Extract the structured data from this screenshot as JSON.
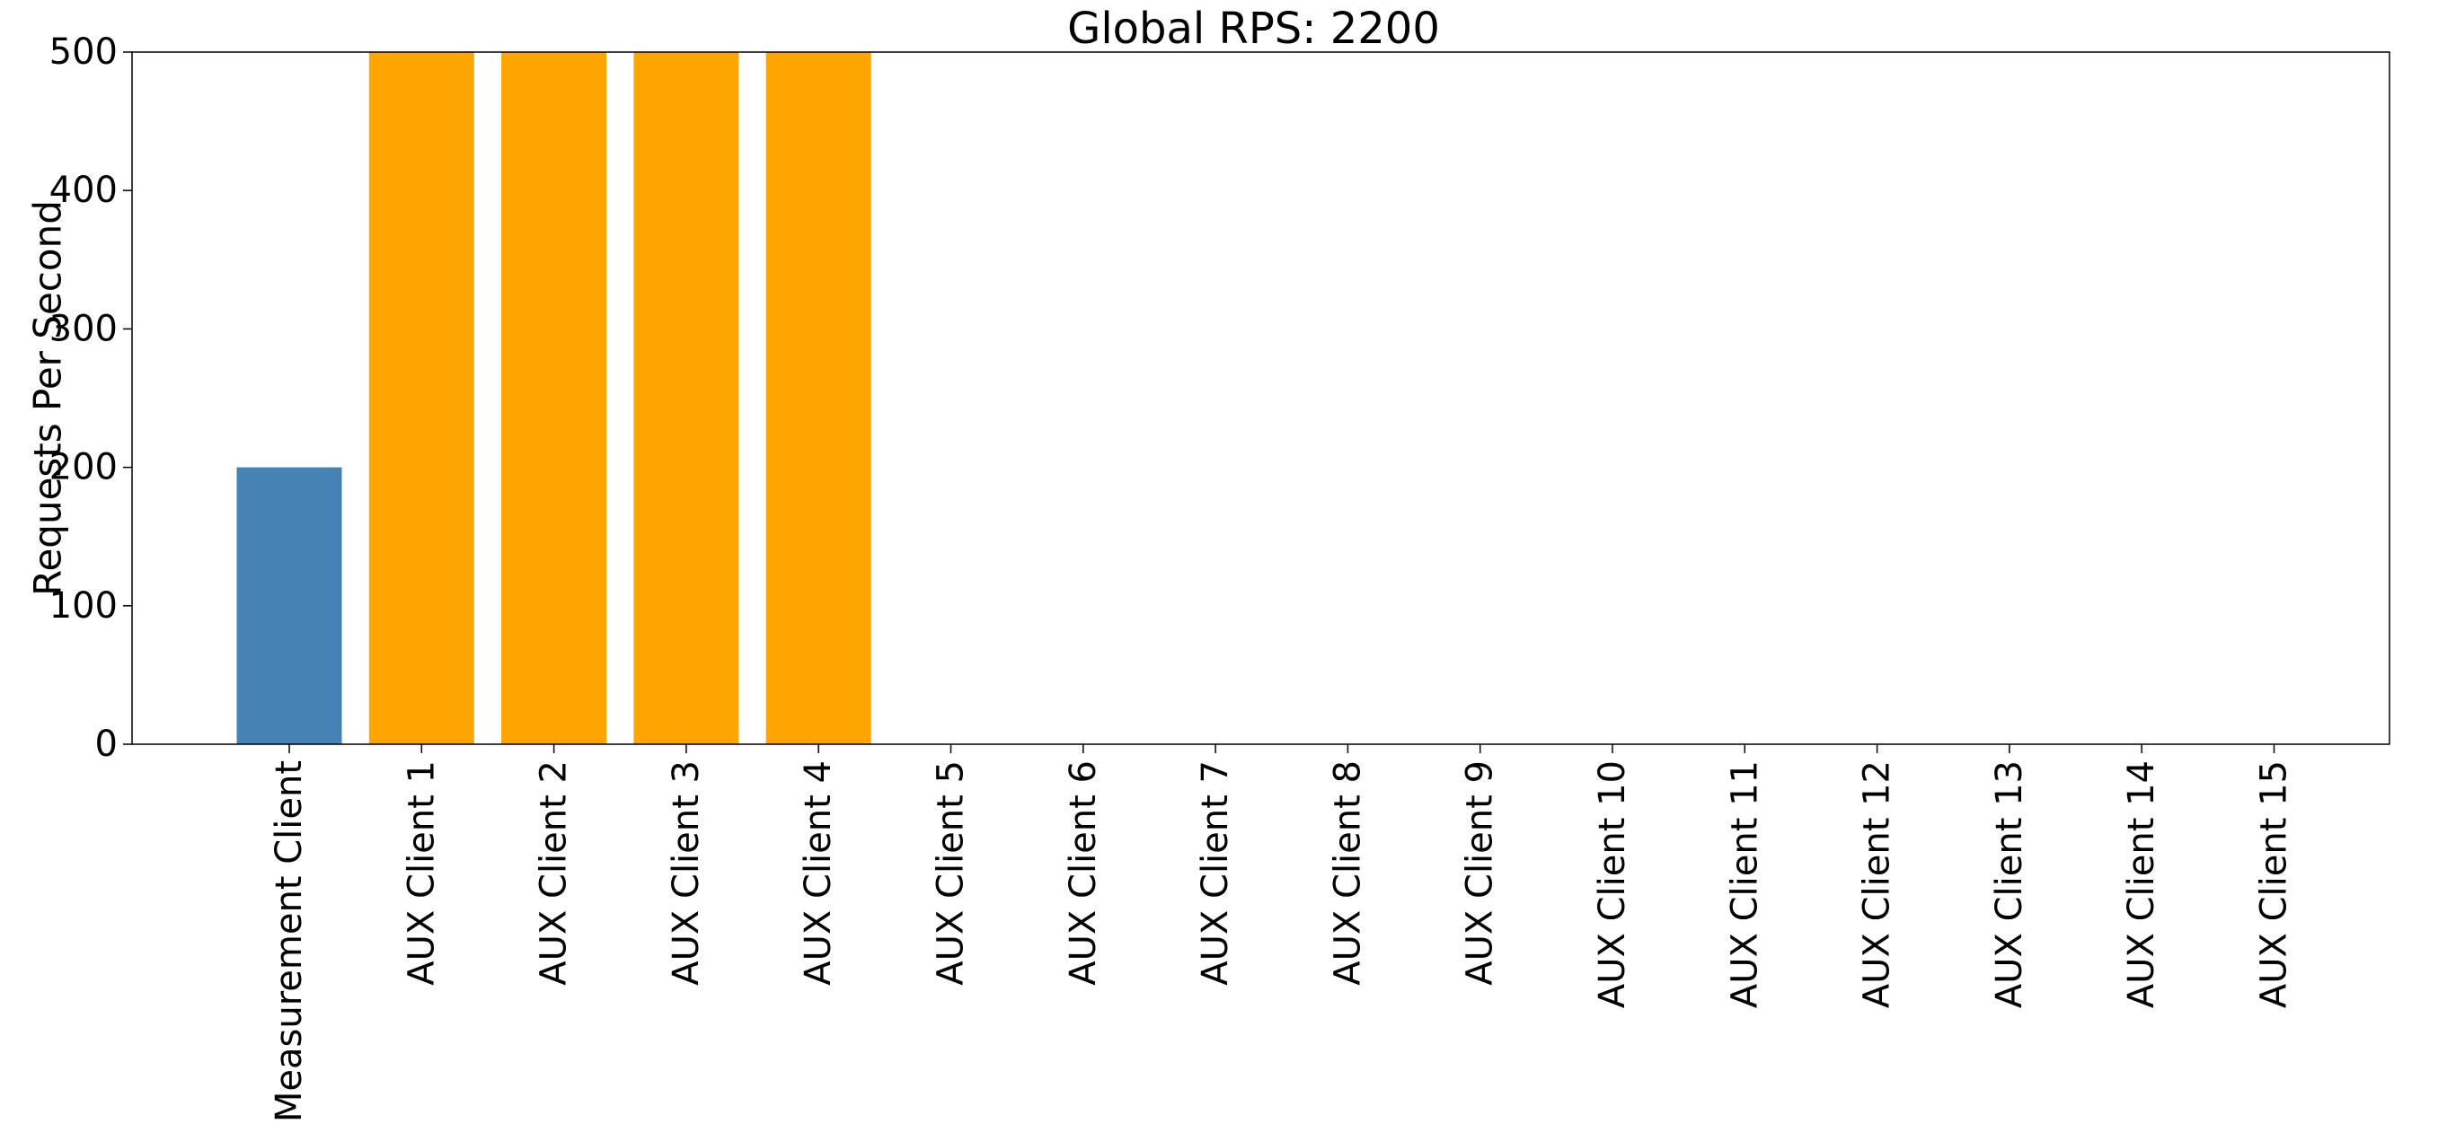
{
  "chart_data": {
    "type": "bar",
    "title": "Global RPS: 2200",
    "xlabel": "",
    "ylabel": "Requests Per Second",
    "ylim": [
      0,
      500
    ],
    "yticks": [
      0,
      100,
      200,
      300,
      400,
      500
    ],
    "grid": false,
    "categories": [
      "Measurement Client",
      "AUX Client 1",
      "AUX Client 2",
      "AUX Client 3",
      "AUX Client 4",
      "AUX Client 5",
      "AUX Client 6",
      "AUX Client 7",
      "AUX Client 8",
      "AUX Client 9",
      "AUX Client 10",
      "AUX Client 11",
      "AUX Client 12",
      "AUX Client 13",
      "AUX Client 14",
      "AUX Client 15"
    ],
    "values": [
      200,
      500,
      500,
      500,
      500,
      0,
      0,
      0,
      0,
      0,
      0,
      0,
      0,
      0,
      0,
      0
    ],
    "colors": {
      "measurement": "#4682B4",
      "aux": "#FFA500",
      "axis": "#000000"
    }
  }
}
